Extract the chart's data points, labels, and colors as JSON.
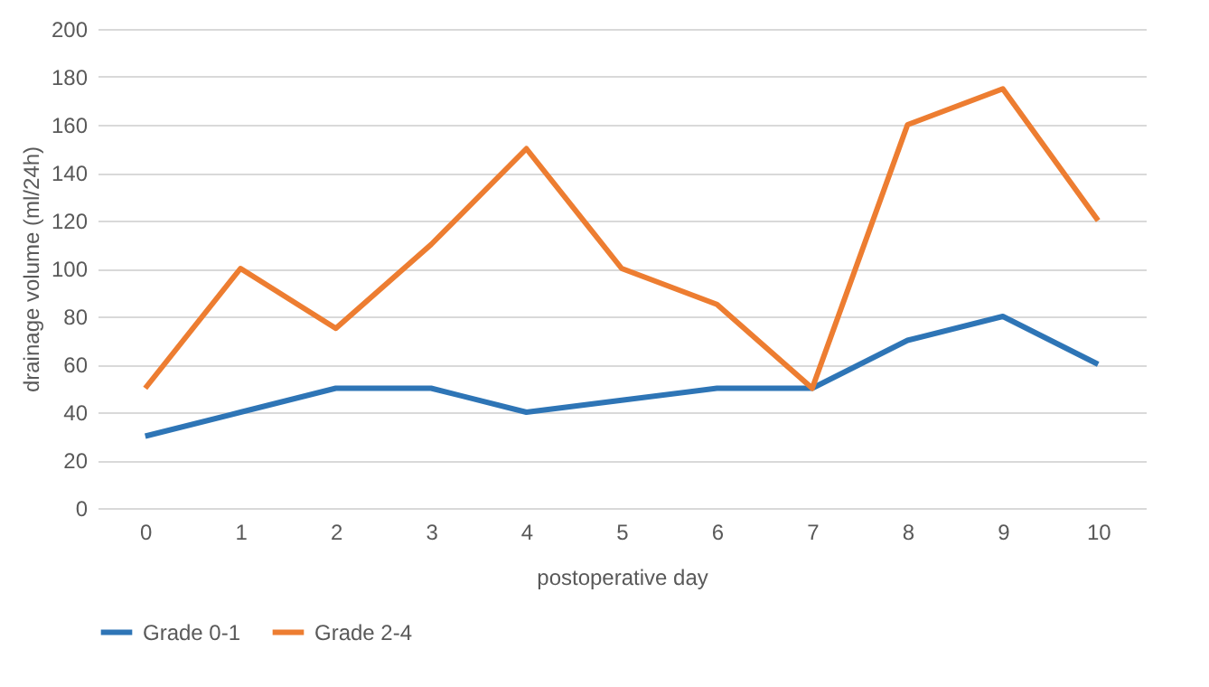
{
  "chart_data": {
    "type": "line",
    "xlabel": "postoperative day",
    "ylabel": "drainage volume (ml/24h)",
    "categories": [
      "0",
      "1",
      "2",
      "3",
      "4",
      "5",
      "6",
      "7",
      "8",
      "9",
      "10"
    ],
    "series": [
      {
        "name": "Grade 0-1",
        "color": "#2e75b6",
        "values": [
          30,
          40,
          50,
          50,
          40,
          45,
          50,
          50,
          70,
          80,
          60
        ]
      },
      {
        "name": "Grade 2-4",
        "color": "#ed7d31",
        "values": [
          50,
          100,
          75,
          110,
          150,
          100,
          85,
          50,
          160,
          175,
          120
        ]
      }
    ],
    "ylim": [
      0,
      200
    ],
    "yticks": [
      0,
      20,
      40,
      60,
      80,
      100,
      120,
      140,
      160,
      180,
      200
    ],
    "grid": "y",
    "legend": "bottom",
    "line_style": "solid"
  }
}
